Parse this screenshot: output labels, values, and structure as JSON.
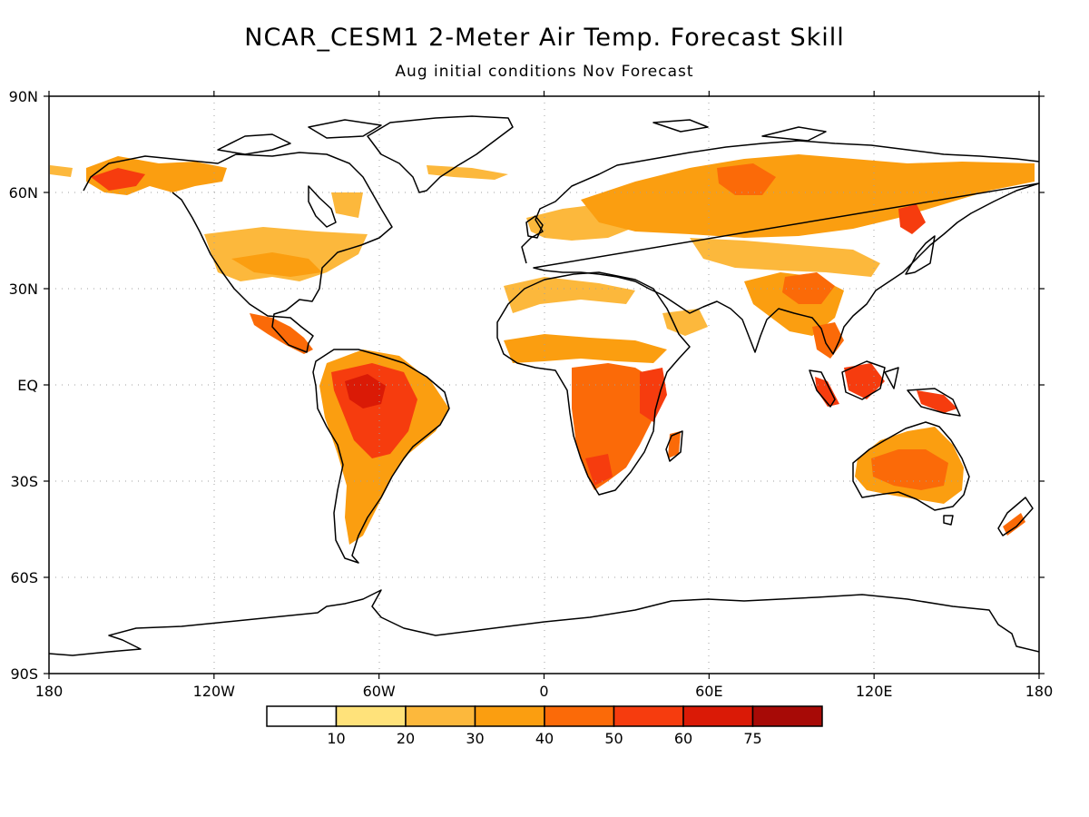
{
  "title": "NCAR_CESM1 2-Meter Air Temp. Forecast Skill",
  "subtitle": "Aug initial conditions  Nov Forecast",
  "map": {
    "projection": "cylindrical equidistant",
    "lon_range": [
      -180,
      180
    ],
    "lat_range": [
      -90,
      90
    ],
    "grid": "dotted",
    "lat_ticks": [
      {
        "lat": 90,
        "label": "90N"
      },
      {
        "lat": 60,
        "label": "60N"
      },
      {
        "lat": 30,
        "label": "30N"
      },
      {
        "lat": 0,
        "label": "EQ"
      },
      {
        "lat": -30,
        "label": "30S"
      },
      {
        "lat": -60,
        "label": "60S"
      },
      {
        "lat": -90,
        "label": "90S"
      }
    ],
    "lon_ticks": [
      {
        "lon": -180,
        "label": "180"
      },
      {
        "lon": -120,
        "label": "120W"
      },
      {
        "lon": -60,
        "label": "60W"
      },
      {
        "lon": 0,
        "label": "0"
      },
      {
        "lon": 60,
        "label": "60E"
      },
      {
        "lon": 120,
        "label": "120E"
      },
      {
        "lon": 180,
        "label": "180"
      }
    ]
  },
  "colorbar": {
    "bins": [
      {
        "color": "#ffffff"
      },
      {
        "color": "#ffe27a"
      },
      {
        "color": "#fcb83c"
      },
      {
        "color": "#fb9e10"
      },
      {
        "color": "#fb6a08"
      },
      {
        "color": "#f63c0e"
      },
      {
        "color": "#da1a06"
      },
      {
        "color": "#a70a06"
      }
    ],
    "labels": [
      "10",
      "20",
      "30",
      "40",
      "50",
      "60",
      "75"
    ]
  }
}
